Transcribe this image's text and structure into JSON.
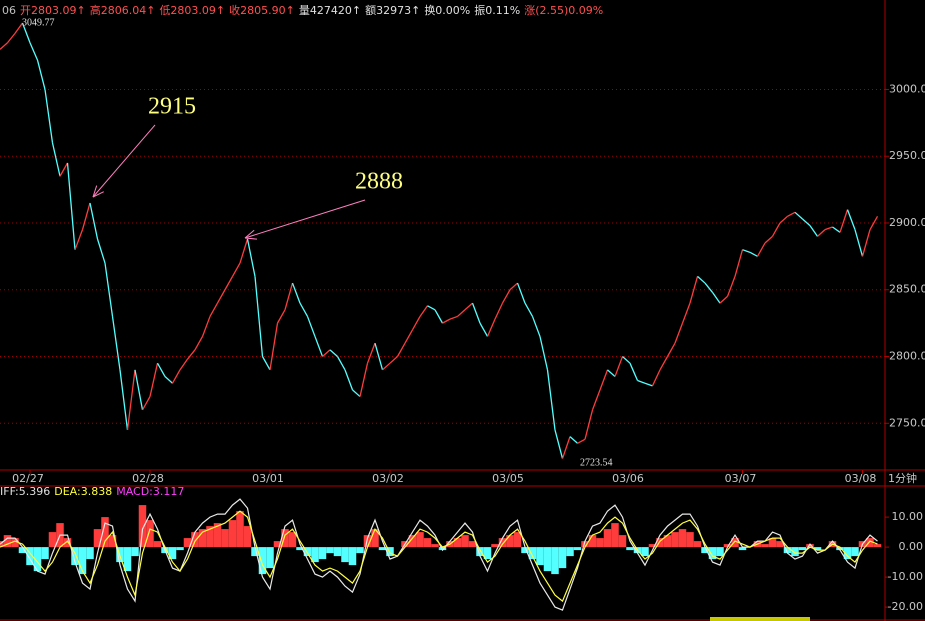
{
  "header": {
    "parts": [
      {
        "text": "06",
        "color": "#c0c0c0"
      },
      {
        "text": "开2803.09↑",
        "color": "#ff5050"
      },
      {
        "text": "高2806.04↑",
        "color": "#ff5050"
      },
      {
        "text": "低2803.09↑",
        "color": "#ff5050"
      },
      {
        "text": "收2805.90↑",
        "color": "#ff5050"
      },
      {
        "text": "量427420↑",
        "color": "#e0e0e0"
      },
      {
        "text": "额32973↑",
        "color": "#e0e0e0"
      },
      {
        "text": "换0.00%",
        "color": "#e0e0e0"
      },
      {
        "text": "振0.11%",
        "color": "#e0e0e0"
      },
      {
        "text": "涨(2.55)0.09%",
        "color": "#ff5050"
      }
    ]
  },
  "chart_data": [
    {
      "type": "line",
      "period_label": "1分钟",
      "x": [
        0,
        1,
        2,
        3,
        4,
        5,
        6,
        7,
        8,
        9,
        10,
        11,
        12,
        13,
        14,
        15,
        16,
        17,
        18,
        19,
        20,
        21,
        22,
        23,
        24,
        25,
        26,
        27,
        28,
        29,
        30,
        31,
        32,
        33,
        34,
        35,
        36,
        37,
        38,
        39,
        40,
        41,
        42,
        43,
        44,
        45,
        46,
        47,
        48,
        49,
        50,
        51,
        52,
        53,
        54,
        55,
        56,
        57,
        58,
        59,
        60,
        61,
        62,
        63,
        64,
        65,
        66,
        67,
        68,
        69,
        70,
        71,
        72,
        73,
        74,
        75,
        76,
        77,
        78,
        79,
        80,
        81,
        82,
        83,
        84,
        85,
        86,
        87,
        88,
        89,
        90,
        91,
        92,
        93,
        94,
        95,
        96,
        97,
        98,
        99,
        100,
        101,
        102,
        103,
        104,
        105,
        106,
        107,
        108,
        109,
        110,
        111,
        112,
        113,
        114,
        115,
        116,
        117
      ],
      "xlim": [
        0,
        118
      ],
      "xticks": [
        {
          "value": 4,
          "label": "02/27"
        },
        {
          "value": 20,
          "label": "02/28"
        },
        {
          "value": 36,
          "label": "03/01"
        },
        {
          "value": 52,
          "label": "03/02"
        },
        {
          "value": 68,
          "label": "03/05"
        },
        {
          "value": 84,
          "label": "03/06"
        },
        {
          "value": 99,
          "label": "03/07"
        },
        {
          "value": 115,
          "label": "03/08"
        }
      ],
      "ylim": [
        2715,
        3067
      ],
      "yticks": [
        {
          "value": 2750,
          "label": "2750.00"
        },
        {
          "value": 2800,
          "label": "2800.00"
        },
        {
          "value": 2850,
          "label": "2850.00"
        },
        {
          "value": 2900,
          "label": "2900.00"
        },
        {
          "value": 2950,
          "label": "2950.00"
        },
        {
          "value": 3000,
          "label": "3000.00"
        }
      ],
      "grid": true,
      "series": [
        {
          "up_color": "#ff3c3c",
          "down_color": "#54ffff",
          "values": [
            3030,
            3035,
            3042,
            3049.77,
            3035,
            3022,
            3000,
            2960,
            2935,
            2945,
            2880,
            2895,
            2915,
            2888,
            2870,
            2830,
            2790,
            2745,
            2790,
            2760,
            2770,
            2795,
            2785,
            2780,
            2790,
            2798,
            2805,
            2815,
            2830,
            2840,
            2850,
            2860,
            2870,
            2888,
            2860,
            2800,
            2790,
            2825,
            2835,
            2855,
            2840,
            2830,
            2815,
            2800,
            2805,
            2800,
            2790,
            2775,
            2770,
            2795,
            2810,
            2790,
            2795,
            2800,
            2810,
            2820,
            2830,
            2838,
            2835,
            2825,
            2828,
            2830,
            2835,
            2840,
            2825,
            2815,
            2828,
            2840,
            2850,
            2855,
            2840,
            2830,
            2815,
            2790,
            2745,
            2723.54,
            2740,
            2735,
            2738,
            2760,
            2775,
            2790,
            2785,
            2800,
            2795,
            2782,
            2780,
            2778,
            2790,
            2800,
            2810,
            2825,
            2840,
            2860,
            2855,
            2848,
            2840,
            2845,
            2860,
            2880,
            2878,
            2875,
            2885,
            2890,
            2900,
            2905,
            2908,
            2903,
            2898,
            2890,
            2895,
            2897,
            2893,
            2910,
            2895,
            2875,
            2895,
            2905
          ]
        }
      ],
      "annotations": [
        {
          "text": "3049.77"
        },
        {
          "text": "2915"
        },
        {
          "text": "2888"
        },
        {
          "text": "2723.54"
        }
      ]
    },
    {
      "type": "bar",
      "ylim": [
        -24.3,
        19.7
      ],
      "yticks": [
        {
          "value": -20,
          "label": "-20.00"
        },
        {
          "value": -10,
          "label": "-10.00"
        },
        {
          "value": 0,
          "label": "0.00"
        },
        {
          "value": 10,
          "label": "10.00"
        }
      ],
      "legend": [
        {
          "text": "IFF:5.396",
          "color": "#e0e0e0"
        },
        {
          "text": "DEA:3.838",
          "color": "#ffff40"
        },
        {
          "text": "MACD:3.117",
          "color": "#ff40ff"
        }
      ],
      "series": [
        {
          "kind": "bar",
          "up_color": "#ff3c3c",
          "down_color": "#54ffff",
          "values": [
            2,
            4,
            3,
            -2,
            -6,
            -8,
            -4,
            5,
            8,
            3,
            -6,
            -9,
            -4,
            6,
            10,
            4,
            -5,
            -8,
            -3,
            14,
            9,
            2,
            -2,
            -4,
            -1,
            3,
            5,
            6,
            7,
            8,
            6,
            9,
            12,
            7,
            -3,
            -9,
            -7,
            2,
            6,
            5,
            -1,
            -3,
            -5,
            -4,
            -2,
            -3,
            -5,
            -6,
            -2,
            4,
            6,
            -1,
            -3,
            0,
            2,
            4,
            5,
            3,
            1,
            -1,
            2,
            3,
            4,
            2,
            -3,
            -4,
            1,
            3,
            4,
            5,
            -2,
            -4,
            -6,
            -8,
            -9,
            -7,
            -3,
            -1,
            2,
            4,
            3,
            6,
            8,
            4,
            -1,
            -2,
            -3,
            1,
            3,
            4,
            5,
            6,
            5,
            2,
            -2,
            -4,
            -3,
            1,
            3,
            -1,
            0,
            2,
            1,
            3,
            2,
            -2,
            -3,
            -1,
            1,
            -1,
            0,
            2,
            -1,
            -4,
            -3,
            2,
            3,
            1
          ]
        },
        {
          "kind": "line",
          "color": "#e8e8e8",
          "values": [
            1,
            3,
            3,
            0,
            -4,
            -8,
            -9,
            -2,
            4,
            4,
            -5,
            -12,
            -14,
            -2,
            8,
            7,
            -6,
            -14,
            -18,
            6,
            11,
            6,
            -1,
            -7,
            -8,
            -2,
            5,
            8,
            10,
            11,
            11,
            14,
            16,
            13,
            0,
            -10,
            -14,
            -2,
            7,
            9,
            1,
            -4,
            -9,
            -10,
            -8,
            -10,
            -13,
            -15,
            -9,
            3,
            9,
            2,
            -4,
            -3,
            1,
            5,
            9,
            7,
            4,
            -1,
            2,
            5,
            8,
            5,
            -3,
            -8,
            -2,
            3,
            7,
            9,
            0,
            -6,
            -12,
            -16,
            -20,
            -21,
            -14,
            -7,
            2,
            7,
            8,
            12,
            14,
            10,
            2,
            -2,
            -6,
            -1,
            4,
            7,
            9,
            11,
            11,
            7,
            0,
            -5,
            -6,
            0,
            4,
            0,
            0,
            2,
            2,
            5,
            4,
            -2,
            -4,
            -3,
            1,
            -2,
            -1,
            2,
            -1,
            -5,
            -7,
            1,
            4,
            2
          ]
        },
        {
          "kind": "line",
          "color": "#ffff40",
          "values": [
            0,
            1,
            2,
            1,
            -2,
            -5,
            -8,
            -5,
            0,
            2,
            -2,
            -8,
            -12,
            -6,
            2,
            5,
            -3,
            -10,
            -16,
            -2,
            6,
            5,
            0,
            -5,
            -8,
            -4,
            2,
            5,
            6,
            7,
            8,
            10,
            12,
            10,
            2,
            -6,
            -10,
            -4,
            4,
            6,
            2,
            -2,
            -6,
            -8,
            -7,
            -8,
            -10,
            -12,
            -8,
            0,
            6,
            3,
            -2,
            -3,
            0,
            3,
            6,
            5,
            3,
            0,
            1,
            3,
            5,
            4,
            -1,
            -5,
            -3,
            1,
            4,
            6,
            2,
            -3,
            -8,
            -12,
            -16,
            -18,
            -12,
            -6,
            0,
            4,
            5,
            8,
            10,
            8,
            3,
            -1,
            -4,
            -2,
            2,
            4,
            6,
            8,
            9,
            6,
            1,
            -3,
            -4,
            -1,
            2,
            1,
            0,
            1,
            2,
            3,
            3,
            0,
            -2,
            -2,
            0,
            -1,
            -1,
            1,
            0,
            -3,
            -5,
            -1,
            2,
            1
          ]
        }
      ]
    }
  ]
}
